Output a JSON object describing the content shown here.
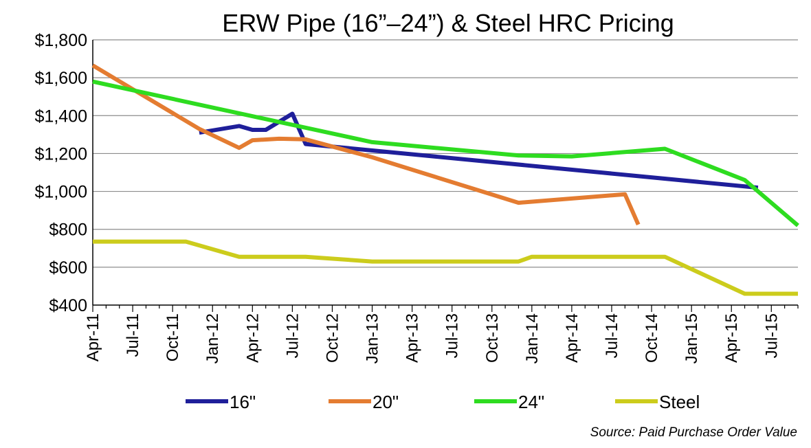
{
  "chart_data": {
    "type": "line",
    "title": "ERW Pipe (16”–24”) & Steel HRC Pricing",
    "source_note": "Source:  Paid  Purchase Order Value",
    "ylim": [
      400,
      1800
    ],
    "yticks": [
      400,
      600,
      800,
      1000,
      1200,
      1400,
      1600,
      1800
    ],
    "ytick_labels": [
      "$400",
      "$600",
      "$800",
      "$1,000",
      "$1,200",
      "$1,400",
      "$1,600",
      "$1,800"
    ],
    "xlim": [
      "2011-04",
      "2015-09"
    ],
    "x_tick_labels": [
      "Apr-11",
      "Jul-11",
      "Oct-11",
      "Jan-12",
      "Apr-12",
      "Jul-12",
      "Oct-12",
      "Jan-13",
      "Apr-13",
      "Jul-13",
      "Oct-13",
      "Jan-14",
      "Apr-14",
      "Jul-14",
      "Oct-14",
      "Jan-15",
      "Apr-15",
      "Jul-15"
    ],
    "grid": "horizontal",
    "legend": "bottom",
    "series": [
      {
        "name": "16\"",
        "color": "#1F1F9A",
        "points": [
          [
            "2011-12",
            1310
          ],
          [
            "2012-03",
            1345
          ],
          [
            "2012-04",
            1325
          ],
          [
            "2012-05",
            1325
          ],
          [
            "2012-07",
            1410
          ],
          [
            "2012-08",
            1250
          ],
          [
            "2015-06",
            1020
          ]
        ]
      },
      {
        "name": "20\"",
        "color": "#E47C31",
        "points": [
          [
            "2011-04",
            1665
          ],
          [
            "2011-12",
            1330
          ],
          [
            "2012-03",
            1230
          ],
          [
            "2012-04",
            1270
          ],
          [
            "2012-06",
            1278
          ],
          [
            "2012-08",
            1275
          ],
          [
            "2013-01",
            1180
          ],
          [
            "2013-12",
            940
          ],
          [
            "2014-08",
            985
          ],
          [
            "2014-09",
            825
          ]
        ]
      },
      {
        "name": "24\"",
        "color": "#2EDC20",
        "points": [
          [
            "2011-04",
            1580
          ],
          [
            "2013-01",
            1260
          ],
          [
            "2013-12",
            1190
          ],
          [
            "2014-04",
            1185
          ],
          [
            "2014-11",
            1225
          ],
          [
            "2015-05",
            1060
          ],
          [
            "2015-09",
            820
          ]
        ]
      },
      {
        "name": "Steel",
        "color": "#CCCC1C",
        "points": [
          [
            "2011-04",
            735
          ],
          [
            "2011-11",
            735
          ],
          [
            "2012-03",
            655
          ],
          [
            "2012-08",
            655
          ],
          [
            "2013-01",
            630
          ],
          [
            "2013-12",
            630
          ],
          [
            "2014-01",
            655
          ],
          [
            "2014-11",
            655
          ],
          [
            "2015-05",
            460
          ],
          [
            "2015-09",
            460
          ]
        ]
      }
    ]
  }
}
